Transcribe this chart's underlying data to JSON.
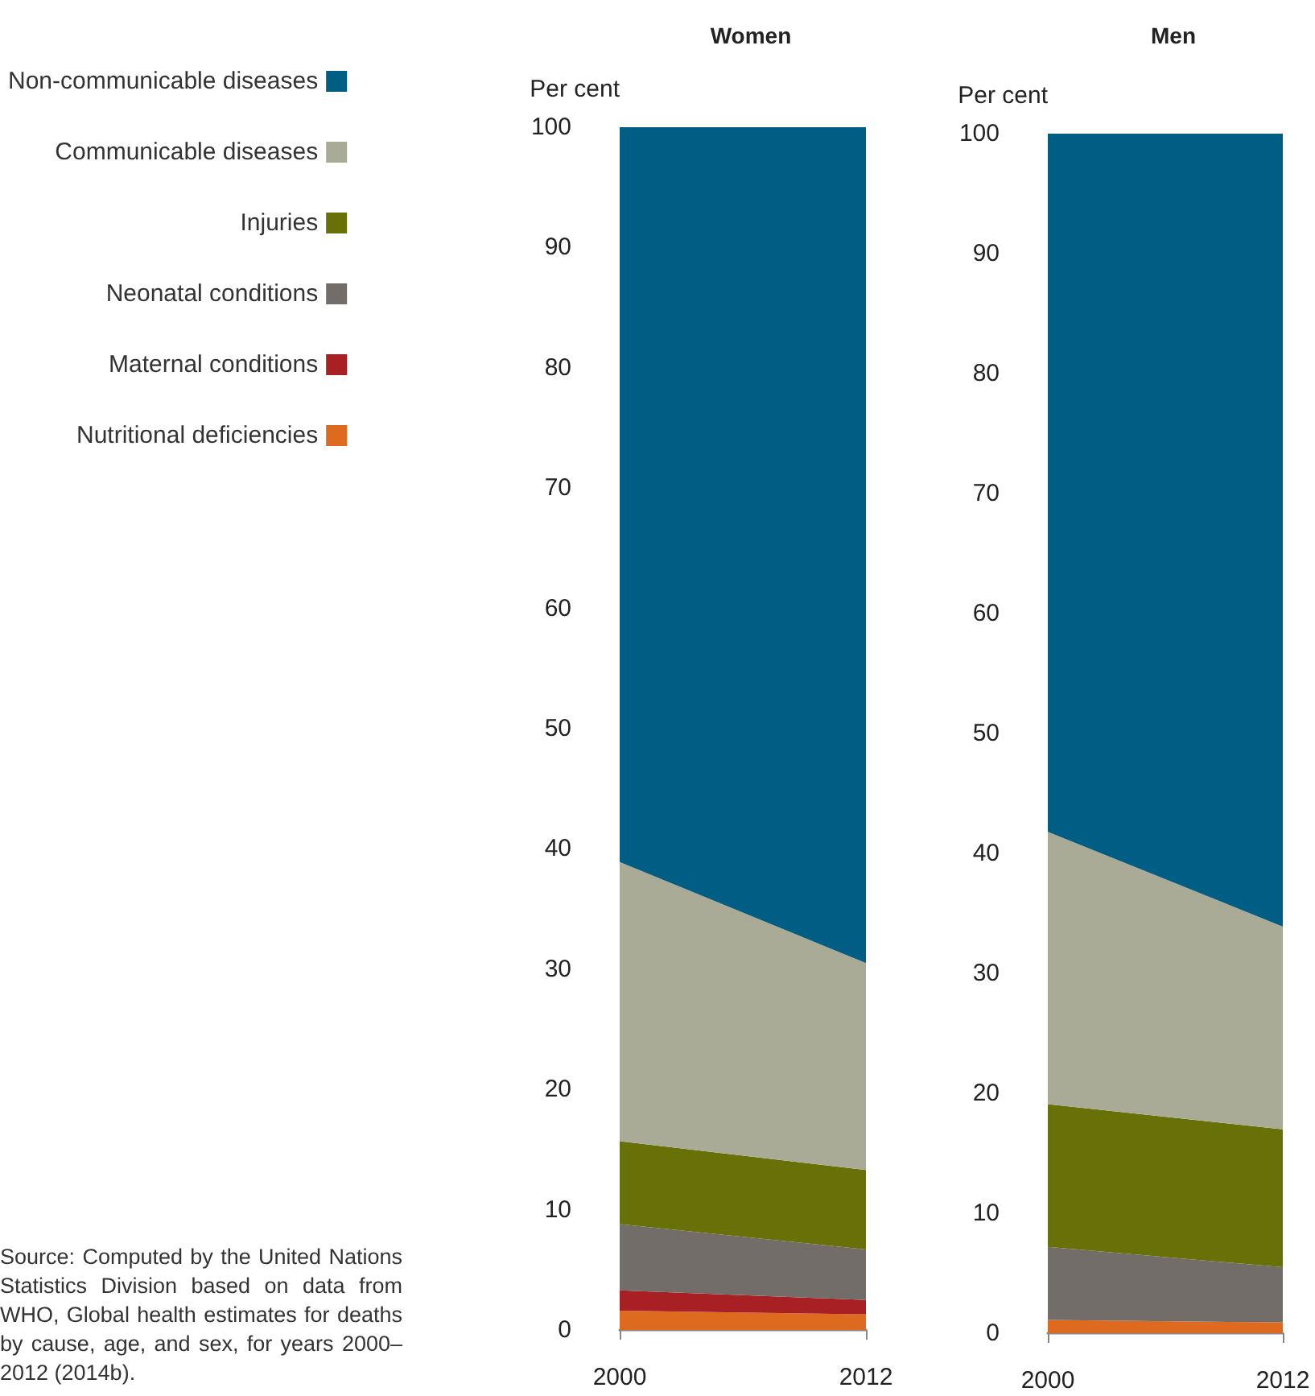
{
  "chart_data": [
    {
      "type": "area",
      "title": "Women",
      "ylabel": "Per cent",
      "stacked": true,
      "categories": [
        "2000",
        "2012"
      ],
      "ylim": [
        0,
        100
      ],
      "yticks": [
        0,
        10,
        20,
        30,
        40,
        50,
        60,
        70,
        80,
        90,
        100
      ],
      "grid": false,
      "legend": "left",
      "annotations": [
        "Source: Computed by the United Nations Statistics Division based on data from WHO, Global health estimates for deaths by cause, age, and sex, for years 2000–2012 (2014b)."
      ],
      "series": [
        {
          "name": "Nutritional deficiencies",
          "color": "#de6a1f",
          "values": [
            1.6,
            1.3
          ]
        },
        {
          "name": "Maternal conditions",
          "color": "#a81f24",
          "values": [
            1.7,
            1.2
          ]
        },
        {
          "name": "Neonatal conditions",
          "color": "#736d6a",
          "values": [
            5.5,
            4.2
          ]
        },
        {
          "name": "Injuries",
          "color": "#687108",
          "values": [
            6.9,
            6.6
          ]
        },
        {
          "name": "Communicable diseases",
          "color": "#aaab97",
          "values": [
            23.2,
            17.2
          ]
        },
        {
          "name": "Non-communicable diseases",
          "color": "#005e85",
          "values": [
            61.1,
            69.5
          ]
        }
      ]
    },
    {
      "type": "area",
      "title": "Men",
      "ylabel": "Per cent",
      "stacked": true,
      "categories": [
        "2000",
        "2012"
      ],
      "ylim": [
        0,
        100
      ],
      "yticks": [
        0,
        10,
        20,
        30,
        40,
        50,
        60,
        70,
        80,
        90,
        100
      ],
      "grid": false,
      "series": [
        {
          "color": "#de6a1f",
          "values": [
            1.1,
            0.9
          ]
        },
        {
          "color": "#736d6a",
          "values": [
            6.1,
            4.6
          ]
        },
        {
          "color": "#687108",
          "values": [
            11.9,
            11.5
          ]
        },
        {
          "color": "#aaab97",
          "values": [
            22.7,
            16.9
          ]
        },
        {
          "color": "#005e85",
          "values": [
            58.2,
            66.1
          ]
        }
      ]
    }
  ]
}
